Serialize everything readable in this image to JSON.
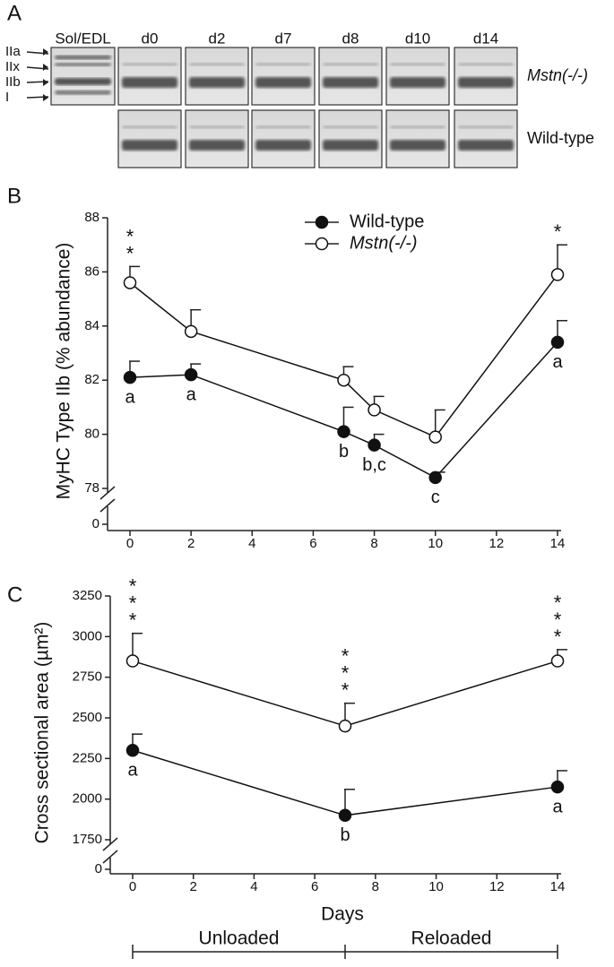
{
  "panel_a": {
    "panel": "A",
    "lanes": [
      "Sol/EDL",
      "d0",
      "d2",
      "d7",
      "d8",
      "d10",
      "d14"
    ],
    "bands": [
      "IIa",
      "IIx",
      "IIb",
      "I"
    ],
    "rows": [
      "Mstn(-/-)",
      "Wild-type"
    ]
  },
  "chart_data": [
    {
      "type": "line",
      "panel": "B",
      "ylabel": "MyHC Type IIb (% abundance)",
      "xlim": [
        0,
        14
      ],
      "xticks": [
        0,
        2,
        4,
        6,
        8,
        10,
        12,
        14
      ],
      "ylim": [
        78,
        88
      ],
      "yticks": [
        78,
        80,
        82,
        84,
        86,
        88
      ],
      "broken_axis_ticks": [
        0
      ],
      "x": [
        0,
        2,
        7,
        8,
        10,
        14
      ],
      "series": [
        {
          "name": "Wild-type",
          "color": "#111111",
          "marker": "filled",
          "values": [
            82.1,
            82.2,
            80.1,
            79.6,
            78.4,
            83.4
          ],
          "errors": [
            0.6,
            0.4,
            0.9,
            0.4,
            0.2,
            0.8
          ],
          "point_labels": [
            "a",
            "a",
            "b",
            "b,c",
            "c",
            "a"
          ]
        },
        {
          "name": "Mstn(-/-)",
          "color": "#111111",
          "marker": "open",
          "values": [
            85.6,
            83.8,
            82.0,
            80.9,
            79.9,
            85.9
          ],
          "errors": [
            0.6,
            0.8,
            0.5,
            0.5,
            1.0,
            1.1
          ]
        }
      ],
      "annotations": [
        {
          "x": 0,
          "text": "**"
        },
        {
          "x": 14,
          "text": "*"
        }
      ]
    },
    {
      "type": "line",
      "panel": "C",
      "ylabel": "Cross sectional area (µm²)",
      "xlabel": "Days",
      "xlim": [
        0,
        14
      ],
      "xticks": [
        0,
        2,
        4,
        6,
        8,
        10,
        12,
        14
      ],
      "ylim": [
        1750,
        3250
      ],
      "yticks": [
        1750,
        2000,
        2250,
        2500,
        2750,
        3000,
        3250
      ],
      "broken_axis_ticks": [
        0
      ],
      "x": [
        0,
        7,
        14
      ],
      "series": [
        {
          "name": "Wild-type",
          "color": "#111111",
          "marker": "filled",
          "values": [
            2300,
            1900,
            2075
          ],
          "errors": [
            100,
            160,
            100
          ],
          "point_labels": [
            "a",
            "b",
            "a"
          ]
        },
        {
          "name": "Mstn(-/-)",
          "color": "#111111",
          "marker": "open",
          "values": [
            2850,
            2450,
            2850
          ],
          "errors": [
            170,
            140,
            70
          ]
        }
      ],
      "annotations": [
        {
          "x": 0,
          "text": "***"
        },
        {
          "x": 7,
          "text": "***"
        },
        {
          "x": 14,
          "text": "***"
        }
      ],
      "phases": [
        "Unloaded",
        "Reloaded"
      ],
      "phase_bounds": [
        0,
        7,
        14
      ]
    }
  ]
}
